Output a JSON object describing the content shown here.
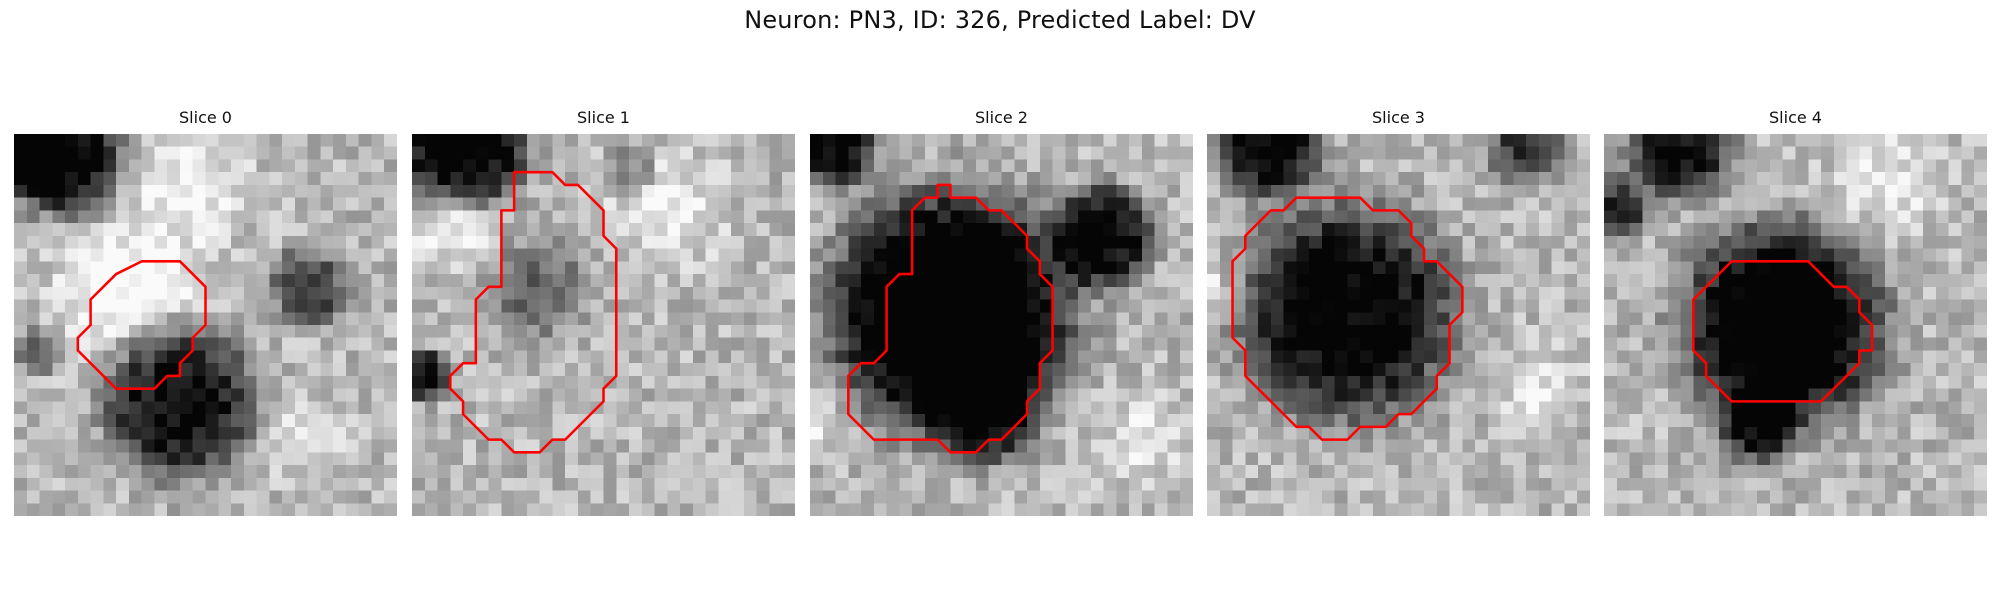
{
  "figure": {
    "title": "Neuron: PN3, ID: 326, Predicted Label: DV"
  },
  "panels": [
    {
      "title": "Slice 0",
      "roi_vertices": [
        [
          10,
          10
        ],
        [
          13,
          10
        ],
        [
          15,
          12
        ],
        [
          15,
          15
        ],
        [
          14,
          16
        ],
        [
          14,
          17
        ],
        [
          13,
          18
        ],
        [
          13,
          19
        ],
        [
          12,
          19
        ],
        [
          11,
          20
        ],
        [
          8,
          20
        ],
        [
          6,
          18
        ],
        [
          5,
          17
        ],
        [
          5,
          16
        ],
        [
          6,
          15
        ],
        [
          6,
          13
        ],
        [
          8,
          11
        ]
      ],
      "dark_blobs": [
        [
          4,
          2,
          4.5,
          0.75
        ],
        [
          0,
          1,
          3,
          0.6
        ],
        [
          13,
          21,
          6,
          0.7
        ],
        [
          23,
          12,
          3,
          0.5
        ],
        [
          2,
          17,
          1.8,
          0.4
        ]
      ],
      "light_blobs": [
        [
          9,
          12,
          5,
          0.35
        ],
        [
          14,
          4,
          4,
          0.25
        ],
        [
          23,
          24,
          3,
          0.2
        ]
      ],
      "seed": 11
    },
    {
      "title": "Slice 1",
      "roi_vertices": [
        [
          8,
          3
        ],
        [
          11,
          3
        ],
        [
          12,
          4
        ],
        [
          13,
          4
        ],
        [
          15,
          6
        ],
        [
          15,
          8
        ],
        [
          16,
          9
        ],
        [
          16,
          19
        ],
        [
          15,
          20
        ],
        [
          15,
          21
        ],
        [
          12,
          24
        ],
        [
          11,
          24
        ],
        [
          10,
          25
        ],
        [
          8,
          25
        ],
        [
          7,
          24
        ],
        [
          6,
          24
        ],
        [
          4,
          22
        ],
        [
          4,
          21
        ],
        [
          3,
          20
        ],
        [
          3,
          19
        ],
        [
          4,
          18
        ],
        [
          5,
          18
        ],
        [
          5,
          13
        ],
        [
          6,
          12
        ],
        [
          7,
          12
        ],
        [
          7,
          6
        ],
        [
          8,
          6
        ]
      ],
      "dark_blobs": [
        [
          4,
          1,
          5,
          0.8
        ],
        [
          1,
          19,
          2,
          0.7
        ],
        [
          10,
          12,
          4,
          0.3
        ],
        [
          17,
          3,
          2,
          0.3
        ]
      ],
      "light_blobs": [
        [
          3,
          7,
          3,
          0.3
        ],
        [
          20,
          6,
          4,
          0.25
        ]
      ],
      "seed": 23
    },
    {
      "title": "Slice 2",
      "roi_vertices": [
        [
          10,
          4
        ],
        [
          11,
          4
        ],
        [
          11,
          5
        ],
        [
          13,
          5
        ],
        [
          14,
          6
        ],
        [
          15,
          6
        ],
        [
          16,
          7
        ],
        [
          17,
          8
        ],
        [
          17,
          9
        ],
        [
          18,
          10
        ],
        [
          18,
          11
        ],
        [
          19,
          12
        ],
        [
          19,
          17
        ],
        [
          18,
          18
        ],
        [
          18,
          20
        ],
        [
          17,
          21
        ],
        [
          17,
          22
        ],
        [
          15,
          24
        ],
        [
          14,
          24
        ],
        [
          13,
          25
        ],
        [
          11,
          25
        ],
        [
          10,
          24
        ],
        [
          5,
          24
        ],
        [
          3,
          22
        ],
        [
          3,
          19
        ],
        [
          4,
          18
        ],
        [
          5,
          18
        ],
        [
          6,
          17
        ],
        [
          6,
          12
        ],
        [
          7,
          11
        ],
        [
          8,
          11
        ],
        [
          8,
          6
        ],
        [
          9,
          5
        ],
        [
          10,
          5
        ]
      ],
      "dark_blobs": [
        [
          11,
          14,
          9.5,
          0.95
        ],
        [
          23,
          8,
          4,
          0.7
        ],
        [
          2,
          1,
          3,
          0.7
        ],
        [
          14,
          22,
          4,
          0.5
        ]
      ],
      "light_blobs": [
        [
          0,
          22,
          3,
          0.2
        ],
        [
          26,
          24,
          3,
          0.2
        ]
      ],
      "seed": 37
    },
    {
      "title": "Slice 3",
      "roi_vertices": [
        [
          7,
          5
        ],
        [
          12,
          5
        ],
        [
          13,
          6
        ],
        [
          15,
          6
        ],
        [
          16,
          7
        ],
        [
          16,
          8
        ],
        [
          17,
          9
        ],
        [
          17,
          10
        ],
        [
          18,
          10
        ],
        [
          19,
          11
        ],
        [
          20,
          12
        ],
        [
          20,
          14
        ],
        [
          19,
          15
        ],
        [
          19,
          18
        ],
        [
          18,
          19
        ],
        [
          18,
          20
        ],
        [
          17,
          21
        ],
        [
          16,
          22
        ],
        [
          15,
          22
        ],
        [
          14,
          23
        ],
        [
          12,
          23
        ],
        [
          11,
          24
        ],
        [
          9,
          24
        ],
        [
          8,
          23
        ],
        [
          7,
          23
        ],
        [
          6,
          22
        ],
        [
          5,
          21
        ],
        [
          4,
          20
        ],
        [
          3,
          19
        ],
        [
          3,
          17
        ],
        [
          2,
          16
        ],
        [
          2,
          10
        ],
        [
          3,
          9
        ],
        [
          3,
          8
        ],
        [
          4,
          7
        ],
        [
          5,
          6
        ],
        [
          6,
          6
        ]
      ],
      "dark_blobs": [
        [
          11,
          14,
          8.5,
          0.75
        ],
        [
          5,
          1,
          4,
          0.7
        ],
        [
          25,
          1,
          3,
          0.5
        ]
      ],
      "light_blobs": [
        [
          0,
          12,
          2.5,
          0.2
        ],
        [
          26,
          20,
          3,
          0.2
        ]
      ],
      "seed": 53
    },
    {
      "title": "Slice 4",
      "roi_vertices": [
        [
          10,
          10
        ],
        [
          16,
          10
        ],
        [
          18,
          12
        ],
        [
          19,
          12
        ],
        [
          20,
          13
        ],
        [
          20,
          14
        ],
        [
          21,
          15
        ],
        [
          21,
          17
        ],
        [
          20,
          17
        ],
        [
          20,
          18
        ],
        [
          17,
          21
        ],
        [
          10,
          21
        ],
        [
          9,
          20
        ],
        [
          8,
          19
        ],
        [
          8,
          18
        ],
        [
          7,
          17
        ],
        [
          7,
          13
        ]
      ],
      "dark_blobs": [
        [
          14,
          15,
          8,
          0.85
        ],
        [
          6,
          1,
          4,
          0.7
        ],
        [
          12,
          23,
          3,
          0.55
        ],
        [
          1,
          6,
          2.5,
          0.55
        ]
      ],
      "light_blobs": [
        [
          22,
          4,
          4,
          0.2
        ]
      ],
      "seed": 71
    }
  ],
  "colors": {
    "roi_outline": "#ff0000",
    "background": "#ffffff"
  }
}
